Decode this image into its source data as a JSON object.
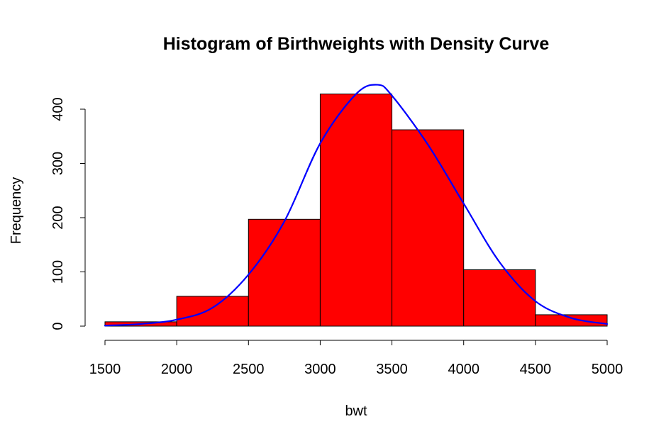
{
  "chart_data": {
    "type": "bar",
    "title": "Histogram of Birthweights with Density Curve",
    "xlabel": "bwt",
    "ylabel": "Frequency",
    "xlim": [
      1500,
      5000
    ],
    "ylim": [
      0,
      430
    ],
    "x_ticks": [
      "1500",
      "2000",
      "2500",
      "3000",
      "3500",
      "4000",
      "4500",
      "5000"
    ],
    "y_ticks": [
      "0",
      "100",
      "200",
      "300",
      "400"
    ],
    "bins": [
      {
        "start": 1500,
        "end": 2000,
        "count": 8
      },
      {
        "start": 2000,
        "end": 2500,
        "count": 55
      },
      {
        "start": 2500,
        "end": 3000,
        "count": 197
      },
      {
        "start": 3000,
        "end": 3500,
        "count": 428
      },
      {
        "start": 3500,
        "end": 4000,
        "count": 362
      },
      {
        "start": 4000,
        "end": 4500,
        "count": 104
      },
      {
        "start": 4500,
        "end": 5000,
        "count": 21
      }
    ],
    "density_curve": {
      "color": "#0000ff",
      "points": [
        {
          "x": 1500,
          "y": 1
        },
        {
          "x": 1750,
          "y": 4
        },
        {
          "x": 2000,
          "y": 12
        },
        {
          "x": 2250,
          "y": 34
        },
        {
          "x": 2500,
          "y": 95
        },
        {
          "x": 2750,
          "y": 193
        },
        {
          "x": 3000,
          "y": 337
        },
        {
          "x": 3250,
          "y": 428
        },
        {
          "x": 3400,
          "y": 445
        },
        {
          "x": 3500,
          "y": 425
        },
        {
          "x": 3750,
          "y": 335
        },
        {
          "x": 4000,
          "y": 226
        },
        {
          "x": 4250,
          "y": 118
        },
        {
          "x": 4500,
          "y": 46
        },
        {
          "x": 4750,
          "y": 15
        },
        {
          "x": 5000,
          "y": 4
        }
      ]
    },
    "bar_fill": "#ff0000",
    "bar_stroke": "#000000",
    "grid": false
  }
}
